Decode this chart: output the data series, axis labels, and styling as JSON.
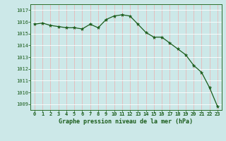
{
  "hours": [
    0,
    1,
    2,
    3,
    4,
    5,
    6,
    7,
    8,
    9,
    10,
    11,
    12,
    13,
    14,
    15,
    16,
    17,
    18,
    19,
    20,
    21,
    22,
    23
  ],
  "pressure": [
    1015.8,
    1015.9,
    1015.7,
    1015.6,
    1015.5,
    1015.5,
    1015.4,
    1015.8,
    1015.5,
    1016.2,
    1016.5,
    1016.6,
    1016.5,
    1015.8,
    1015.1,
    1014.7,
    1014.7,
    1014.2,
    1013.7,
    1013.2,
    1012.3,
    1011.7,
    1010.4,
    1008.8
  ],
  "ylim": [
    1008.5,
    1017.5
  ],
  "yticks": [
    1009,
    1010,
    1011,
    1012,
    1013,
    1014,
    1015,
    1016,
    1017
  ],
  "xlabel": "Graphe pression niveau de la mer (hPa)",
  "line_color": "#1a5c1a",
  "marker_color": "#1a5c1a",
  "bg_color": "#cce8e8",
  "hgrid_color": "#ffffff",
  "vgrid_color": "#e8b8b8",
  "title_color": "#1a5c1a",
  "tick_color": "#1a5c1a",
  "spine_color": "#2a6e2a"
}
